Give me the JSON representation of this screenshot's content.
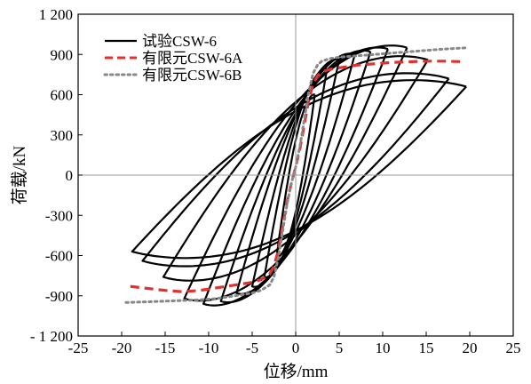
{
  "chart_data": {
    "type": "line",
    "xlabel": "位移/mm",
    "ylabel": "荷载/kN",
    "xlim": [
      -25,
      25
    ],
    "ylim": [
      -1200,
      1200
    ],
    "xticks": [
      -25,
      -20,
      -15,
      -10,
      -5,
      0,
      5,
      10,
      15,
      20,
      25
    ],
    "yticks": [
      -1200,
      -900,
      -600,
      -300,
      0,
      300,
      600,
      900,
      1200
    ],
    "ytick_labels": [
      "- 1 200",
      "-900",
      "-600",
      "-300",
      "0",
      "300",
      "600",
      "900",
      "1 200"
    ],
    "grid": false,
    "zero_lines": true,
    "legend_position": "top-left",
    "series": [
      {
        "name": "试验CSW-6",
        "style": "solid",
        "color": "#000000",
        "loops": [
          {
            "peak_pos": [
              2.2,
              600
            ],
            "peak_neg": [
              -2.2,
              -610
            ],
            "w": 110
          },
          {
            "peak_pos": [
              3.6,
              790
            ],
            "peak_neg": [
              -3.6,
              -760
            ],
            "w": 150
          },
          {
            "peak_pos": [
              5.0,
              860
            ],
            "peak_neg": [
              -5.0,
              -830
            ],
            "w": 190
          },
          {
            "peak_pos": [
              6.8,
              900
            ],
            "peak_neg": [
              -6.8,
              -880
            ],
            "w": 240
          },
          {
            "peak_pos": [
              8.6,
              920
            ],
            "peak_neg": [
              -8.6,
              -940
            ],
            "w": 280
          },
          {
            "peak_pos": [
              10.6,
              940
            ],
            "peak_neg": [
              -10.6,
              -960
            ],
            "w": 320
          },
          {
            "peak_pos": [
              12.8,
              950
            ],
            "peak_neg": [
              -12.8,
              -920
            ],
            "w": 360
          },
          {
            "peak_pos": [
              15.2,
              860
            ],
            "peak_neg": [
              -15.2,
              -760
            ],
            "w": 400
          },
          {
            "peak_pos": [
              17.6,
              720
            ],
            "peak_neg": [
              -17.6,
              -640
            ],
            "w": 420
          },
          {
            "peak_pos": [
              19.6,
              660
            ],
            "peak_neg": [
              -18.8,
              -570
            ],
            "w": 430
          }
        ],
        "end": [
          [
            -13.5,
            0
          ]
        ]
      },
      {
        "name": "有限元CSW-6A",
        "style": "dashed",
        "color": "#e03030",
        "x": [
          -19,
          -17,
          -15,
          -13,
          -11,
          -9,
          -7,
          -5,
          -4,
          -3,
          -2.5,
          -2,
          -1.5,
          -1,
          -0.5,
          0,
          0.5,
          1,
          1.5,
          2,
          2.5,
          3,
          4,
          5,
          7,
          9,
          11,
          13,
          15,
          17,
          19.5
        ],
        "y": [
          -830,
          -845,
          -860,
          -870,
          -860,
          -840,
          -820,
          -800,
          -780,
          -740,
          -680,
          -560,
          -380,
          -200,
          -60,
          60,
          200,
          380,
          560,
          680,
          740,
          770,
          790,
          800,
          820,
          830,
          840,
          845,
          850,
          850,
          845
        ]
      },
      {
        "name": "有限元CSW-6B",
        "style": "dotted",
        "color": "#888888",
        "x": [
          -19.5,
          -17,
          -15,
          -13,
          -11,
          -9,
          -7,
          -5,
          -4,
          -3,
          -2.5,
          -2,
          -1.5,
          -1,
          -0.5,
          0,
          0.5,
          1,
          1.5,
          2,
          2.5,
          3,
          4,
          5,
          7,
          9,
          11,
          13,
          15,
          17,
          19.7
        ],
        "y": [
          -950,
          -945,
          -940,
          -935,
          -930,
          -920,
          -900,
          -880,
          -860,
          -820,
          -760,
          -620,
          -420,
          -220,
          -60,
          60,
          220,
          420,
          620,
          760,
          820,
          850,
          870,
          880,
          890,
          900,
          910,
          920,
          930,
          940,
          950
        ]
      }
    ]
  }
}
